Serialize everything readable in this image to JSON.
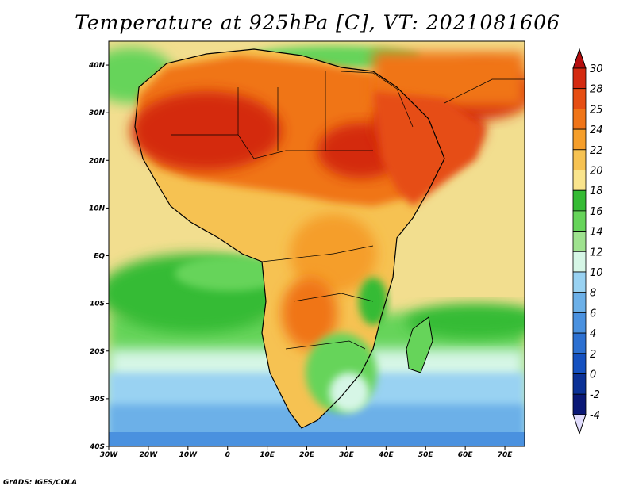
{
  "title": "Temperature at 925hPa [C], VT: 2021081606",
  "credit": "GrADS: IGES/COLA",
  "map": {
    "lon_range": [
      -30,
      75
    ],
    "lat_range": [
      -40,
      45
    ],
    "lon_ticks": [
      "30W",
      "20W",
      "10W",
      "0",
      "10E",
      "20E",
      "30E",
      "40E",
      "50E",
      "60E",
      "70E"
    ],
    "lat_ticks": [
      "40N",
      "30N",
      "20N",
      "10N",
      "EQ",
      "10S",
      "20S",
      "30S",
      "40S"
    ],
    "ocean_fill": "#f2de8f"
  },
  "colorbar": {
    "levels": [
      "30",
      "28",
      "25",
      "24",
      "22",
      "20",
      "18",
      "16",
      "14",
      "12",
      "10",
      "8",
      "6",
      "4",
      "2",
      "0",
      "-2",
      "-4"
    ],
    "colors": [
      "#b50e0e",
      "#d42a10",
      "#e64e13",
      "#f07518",
      "#f59e2a",
      "#f6c252",
      "#f9e48d",
      "#35bb34",
      "#66d45a",
      "#9fe28f",
      "#d6f6e6",
      "#99d2f2",
      "#6cb0e8",
      "#4a91df",
      "#2c70d1",
      "#1551c0",
      "#0b3196",
      "#0a1876"
    ],
    "top_color": "#b50e0e",
    "bottom_color": "#e0dcfc"
  }
}
